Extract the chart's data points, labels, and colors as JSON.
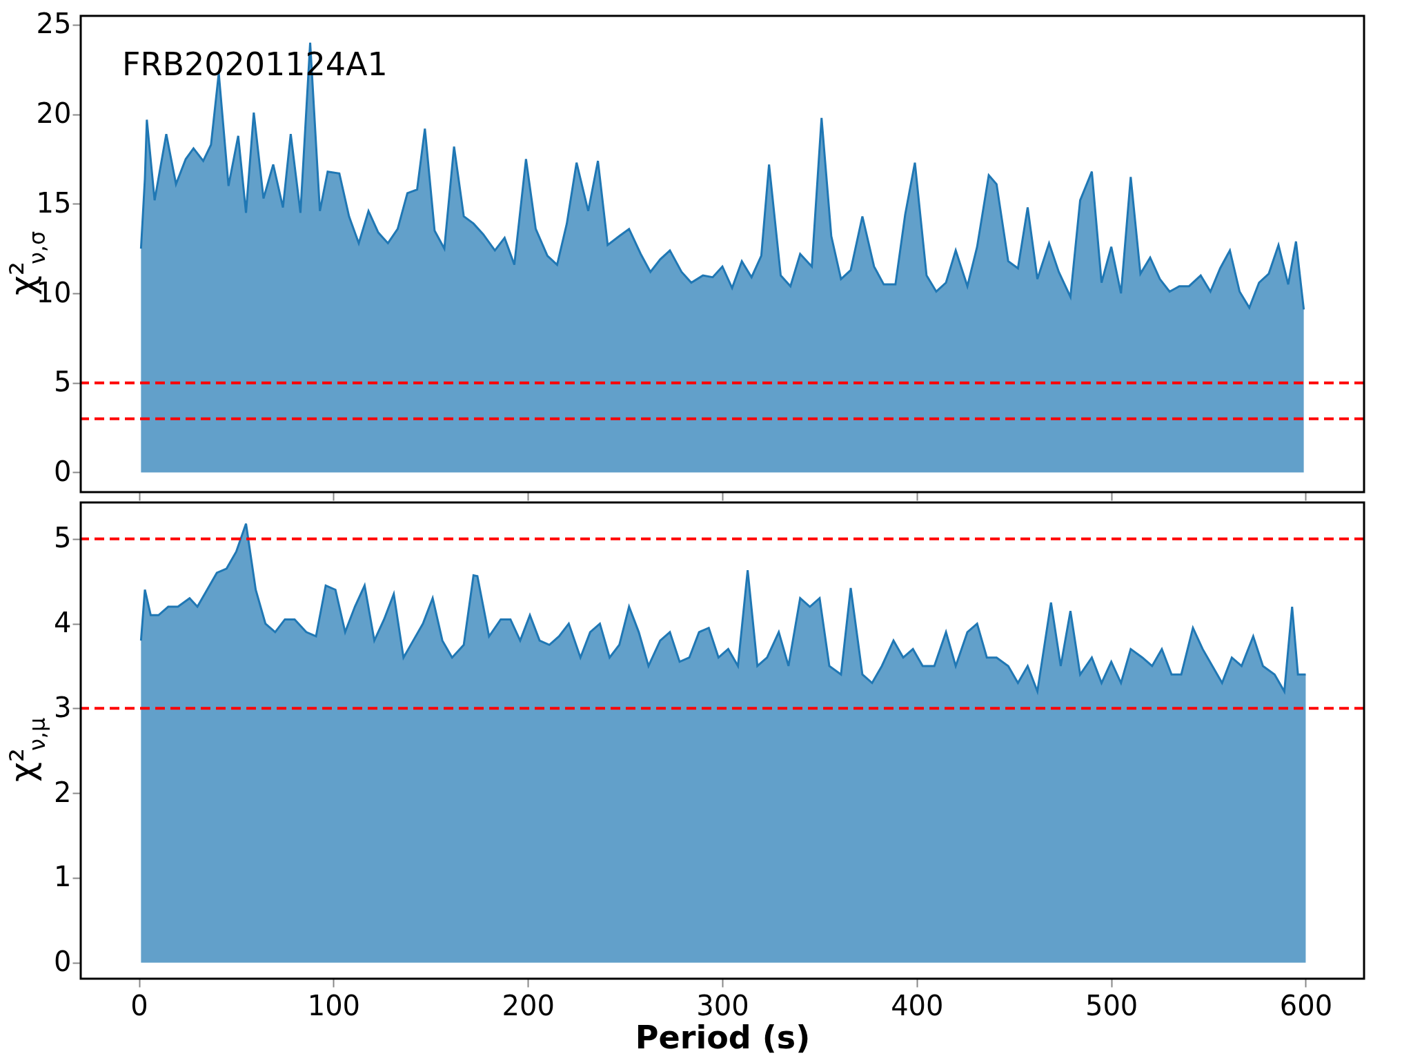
{
  "chart_data": [
    {
      "type": "area",
      "ylabel": "χ²$_{ν,σ}$",
      "annotations": [
        "FRB20201124A1"
      ],
      "tick_labels": "y",
      "grid": false,
      "xlim": [
        -30,
        630
      ],
      "xticks": [
        0,
        100,
        200,
        300,
        400,
        500,
        600
      ],
      "ylim": [
        -1.1,
        25.5
      ],
      "yticks": [
        0,
        5,
        10,
        15,
        20,
        25
      ],
      "ref_lines": [
        {
          "axis": "y",
          "value": 5,
          "color": "#ff0000",
          "line_style": "dashed"
        },
        {
          "axis": "y",
          "value": 3,
          "color": "#ff0000",
          "line_style": "dashed"
        }
      ],
      "series": [
        {
          "color": "#1f77b4",
          "x": [
            1,
            3,
            4,
            8,
            14,
            19,
            24,
            28,
            33,
            37,
            41,
            46,
            51,
            55,
            59,
            64,
            69,
            74,
            78,
            83,
            88,
            93,
            97,
            103,
            108,
            113,
            118,
            123,
            128,
            133,
            138,
            143,
            147,
            152,
            157,
            162,
            167,
            172,
            177,
            183,
            188,
            193,
            199,
            204,
            210,
            215,
            220,
            225,
            231,
            236,
            241,
            247,
            252,
            258,
            263,
            268,
            273,
            279,
            284,
            290,
            295,
            300,
            305,
            310,
            315,
            320,
            324,
            330,
            335,
            340,
            346,
            351,
            356,
            361,
            366,
            372,
            378,
            383,
            389,
            394,
            399,
            405,
            410,
            415,
            420,
            426,
            431,
            437,
            441,
            447,
            452,
            457,
            462,
            468,
            473,
            479,
            484,
            490,
            495,
            500,
            505,
            510,
            515,
            520,
            525,
            530,
            535,
            540,
            546,
            551,
            556,
            561,
            566,
            571,
            576,
            581,
            586,
            591,
            595,
            599
          ],
          "values": [
            12.5,
            16.4,
            19.7,
            15.2,
            18.9,
            16.1,
            17.5,
            18.1,
            17.4,
            18.3,
            22.3,
            16,
            18.8,
            14.5,
            20.1,
            15.3,
            17.2,
            14.8,
            18.9,
            14.5,
            24.0,
            14.6,
            16.8,
            16.7,
            14.3,
            12.8,
            14.6,
            13.4,
            12.8,
            13.6,
            15.6,
            15.8,
            19.2,
            13.5,
            12.5,
            18.2,
            14.3,
            13.9,
            13.3,
            12.4,
            13.1,
            11.6,
            17.5,
            13.6,
            12.1,
            11.6,
            13.9,
            17.3,
            14.6,
            17.4,
            12.7,
            13.2,
            13.6,
            12.2,
            11.2,
            11.9,
            12.4,
            11.2,
            10.6,
            11.0,
            10.9,
            11.5,
            10.3,
            11.8,
            10.9,
            12.1,
            17.2,
            11.0,
            10.4,
            12.2,
            11.5,
            19.8,
            13.2,
            10.8,
            11.3,
            14.3,
            11.5,
            10.5,
            10.5,
            14.4,
            17.3,
            11.0,
            10.1,
            10.6,
            12.4,
            10.4,
            12.6,
            16.6,
            16.1,
            11.8,
            11.4,
            14.8,
            10.8,
            12.8,
            11.2,
            9.8,
            15.2,
            16.8,
            10.6,
            12.6,
            10.0,
            16.5,
            11.1,
            12.0,
            10.8,
            10.1,
            10.4,
            10.4,
            11.0,
            10.1,
            11.4,
            12.4,
            10.1,
            9.2,
            10.6,
            11.1,
            12.7,
            10.5,
            12.9,
            9.1
          ]
        }
      ]
    },
    {
      "type": "area",
      "xlabel": "Period (s)",
      "ylabel": "χ²$_{ν,μ}$",
      "grid": false,
      "xlim": [
        -30,
        630
      ],
      "xticks": [
        0,
        100,
        200,
        300,
        400,
        500,
        600
      ],
      "ylim": [
        -0.19,
        5.43
      ],
      "yticks": [
        0,
        1,
        2,
        3,
        4,
        5
      ],
      "ref_lines": [
        {
          "axis": "y",
          "value": 5,
          "color": "#ff0000",
          "line_style": "dashed"
        },
        {
          "axis": "y",
          "value": 3,
          "color": "#ff0000",
          "line_style": "dashed"
        }
      ],
      "series": [
        {
          "color": "#1f77b4",
          "x": [
            1,
            3,
            6,
            10,
            15,
            20,
            26,
            30,
            35,
            40,
            45,
            50,
            55,
            60,
            65,
            70,
            75,
            80,
            86,
            91,
            96,
            101,
            106,
            111,
            116,
            121,
            126,
            131,
            136,
            141,
            146,
            151,
            156,
            161,
            167,
            172,
            174,
            180,
            186,
            191,
            196,
            201,
            206,
            211,
            216,
            221,
            227,
            232,
            237,
            242,
            247,
            252,
            257,
            262,
            268,
            273,
            278,
            283,
            288,
            293,
            298,
            303,
            308,
            313,
            318,
            323,
            329,
            334,
            340,
            345,
            350,
            355,
            361,
            366,
            372,
            377,
            382,
            388,
            393,
            398,
            403,
            409,
            415,
            420,
            426,
            431,
            436,
            441,
            447,
            452,
            457,
            462,
            469,
            474,
            479,
            484,
            490,
            495,
            500,
            505,
            510,
            516,
            521,
            526,
            531,
            536,
            542,
            547,
            552,
            557,
            562,
            567,
            573,
            578,
            584,
            589,
            593,
            596,
            600
          ],
          "values": [
            3.8,
            4.4,
            4.1,
            4.1,
            4.2,
            4.2,
            4.3,
            4.2,
            4.4,
            4.6,
            4.65,
            4.85,
            5.18,
            4.4,
            4.0,
            3.9,
            4.05,
            4.05,
            3.9,
            3.85,
            4.45,
            4.4,
            3.9,
            4.2,
            4.45,
            3.8,
            4.05,
            4.35,
            3.6,
            3.8,
            4.0,
            4.3,
            3.8,
            3.6,
            3.75,
            4.57,
            4.56,
            3.85,
            4.05,
            4.05,
            3.8,
            4.1,
            3.8,
            3.75,
            3.85,
            4.0,
            3.6,
            3.9,
            4.0,
            3.6,
            3.75,
            4.2,
            3.9,
            3.5,
            3.8,
            3.9,
            3.55,
            3.6,
            3.9,
            3.95,
            3.6,
            3.7,
            3.5,
            4.63,
            3.5,
            3.6,
            3.9,
            3.5,
            4.3,
            4.2,
            4.3,
            3.5,
            3.4,
            4.42,
            3.4,
            3.3,
            3.5,
            3.8,
            3.6,
            3.7,
            3.5,
            3.5,
            3.9,
            3.5,
            3.9,
            4.0,
            3.6,
            3.6,
            3.5,
            3.3,
            3.5,
            3.2,
            4.25,
            3.5,
            4.15,
            3.4,
            3.6,
            3.3,
            3.55,
            3.3,
            3.7,
            3.6,
            3.5,
            3.7,
            3.4,
            3.4,
            3.95,
            3.7,
            3.5,
            3.3,
            3.6,
            3.5,
            3.85,
            3.5,
            3.4,
            3.2,
            4.2,
            3.4,
            3.4
          ]
        }
      ]
    }
  ]
}
